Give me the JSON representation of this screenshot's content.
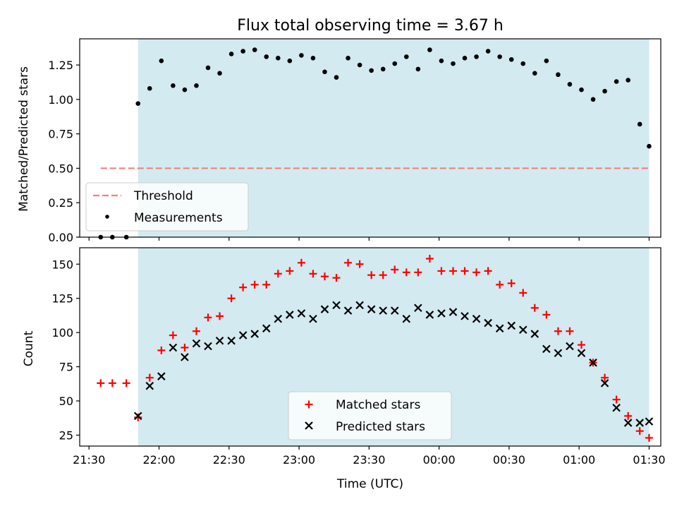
{
  "chart_data": {
    "type": "scatter",
    "title": "Flux total observing time = 3.67 h",
    "xlabel": "Time (UTC)",
    "xlim": [
      "21:26",
      "01:35"
    ],
    "x_ticks": [
      "21:30",
      "22:00",
      "22:30",
      "23:00",
      "23:30",
      "00:00",
      "00:30",
      "01:00",
      "01:30"
    ],
    "shaded_region": {
      "start": "21:51",
      "end": "01:30",
      "color": "#d3eaf0"
    },
    "x": [
      "21:35",
      "21:40",
      "21:46",
      "21:51",
      "21:56",
      "22:01",
      "22:06",
      "22:11",
      "22:16",
      "22:21",
      "22:26",
      "22:31",
      "22:36",
      "22:41",
      "22:46",
      "22:51",
      "22:56",
      "23:01",
      "23:06",
      "23:11",
      "23:16",
      "23:21",
      "23:26",
      "23:31",
      "23:36",
      "23:41",
      "23:46",
      "23:51",
      "23:56",
      "00:01",
      "00:06",
      "00:11",
      "00:16",
      "00:21",
      "00:26",
      "00:31",
      "00:36",
      "00:41",
      "00:46",
      "00:51",
      "00:56",
      "01:01",
      "01:06",
      "01:11",
      "01:16",
      "01:21",
      "01:26",
      "01:30"
    ],
    "panels": [
      {
        "ylabel": "Matched/Predicted stars",
        "ylim": [
          0,
          1.44
        ],
        "y_ticks": [
          "0.00",
          "0.25",
          "0.50",
          "0.75",
          "1.00",
          "1.25"
        ],
        "threshold": {
          "name": "Threshold",
          "value": 0.5,
          "start": "21:35",
          "end": "01:30",
          "color": "#f08080"
        },
        "legend_position": "lower-left",
        "series": [
          {
            "name": "Measurements",
            "marker": "dot",
            "color": "#000000",
            "values": [
              0,
              0,
              0,
              0.97,
              1.08,
              1.28,
              1.1,
              1.07,
              1.1,
              1.23,
              1.19,
              1.33,
              1.35,
              1.36,
              1.31,
              1.3,
              1.28,
              1.32,
              1.3,
              1.2,
              1.16,
              1.3,
              1.25,
              1.21,
              1.22,
              1.26,
              1.31,
              1.22,
              1.36,
              1.28,
              1.26,
              1.3,
              1.31,
              1.35,
              1.31,
              1.29,
              1.26,
              1.19,
              1.28,
              1.18,
              1.11,
              1.07,
              1.0,
              1.06,
              1.13,
              1.14,
              0.82,
              0.66
            ]
          }
        ]
      },
      {
        "ylabel": "Count",
        "ylim": [
          17,
          162
        ],
        "y_ticks": [
          "25",
          "50",
          "75",
          "100",
          "125",
          "150"
        ],
        "legend_position": "lower-center",
        "series": [
          {
            "name": "Matched stars",
            "marker": "plus",
            "color": "#ff0000",
            "values": [
              63,
              63,
              63,
              38,
              67,
              87,
              98,
              89,
              101,
              111,
              112,
              125,
              133,
              135,
              135,
              143,
              145,
              151,
              143,
              141,
              140,
              151,
              150,
              142,
              142,
              146,
              144,
              144,
              154,
              145,
              145,
              145,
              144,
              145,
              135,
              136,
              129,
              118,
              113,
              101,
              101,
              91,
              78,
              67,
              51,
              39,
              28,
              23
            ]
          },
          {
            "name": "Predicted stars",
            "marker": "x",
            "color": "#000000",
            "values": [
              null,
              null,
              null,
              39,
              61,
              68,
              89,
              82,
              92,
              90,
              94,
              94,
              98,
              99,
              103,
              110,
              113,
              114,
              110,
              117,
              120,
              116,
              120,
              117,
              116,
              116,
              110,
              118,
              113,
              114,
              115,
              112,
              110,
              107,
              103,
              105,
              102,
              99,
              88,
              85,
              90,
              85,
              78,
              63,
              45,
              34,
              34,
              35
            ]
          }
        ]
      }
    ]
  }
}
